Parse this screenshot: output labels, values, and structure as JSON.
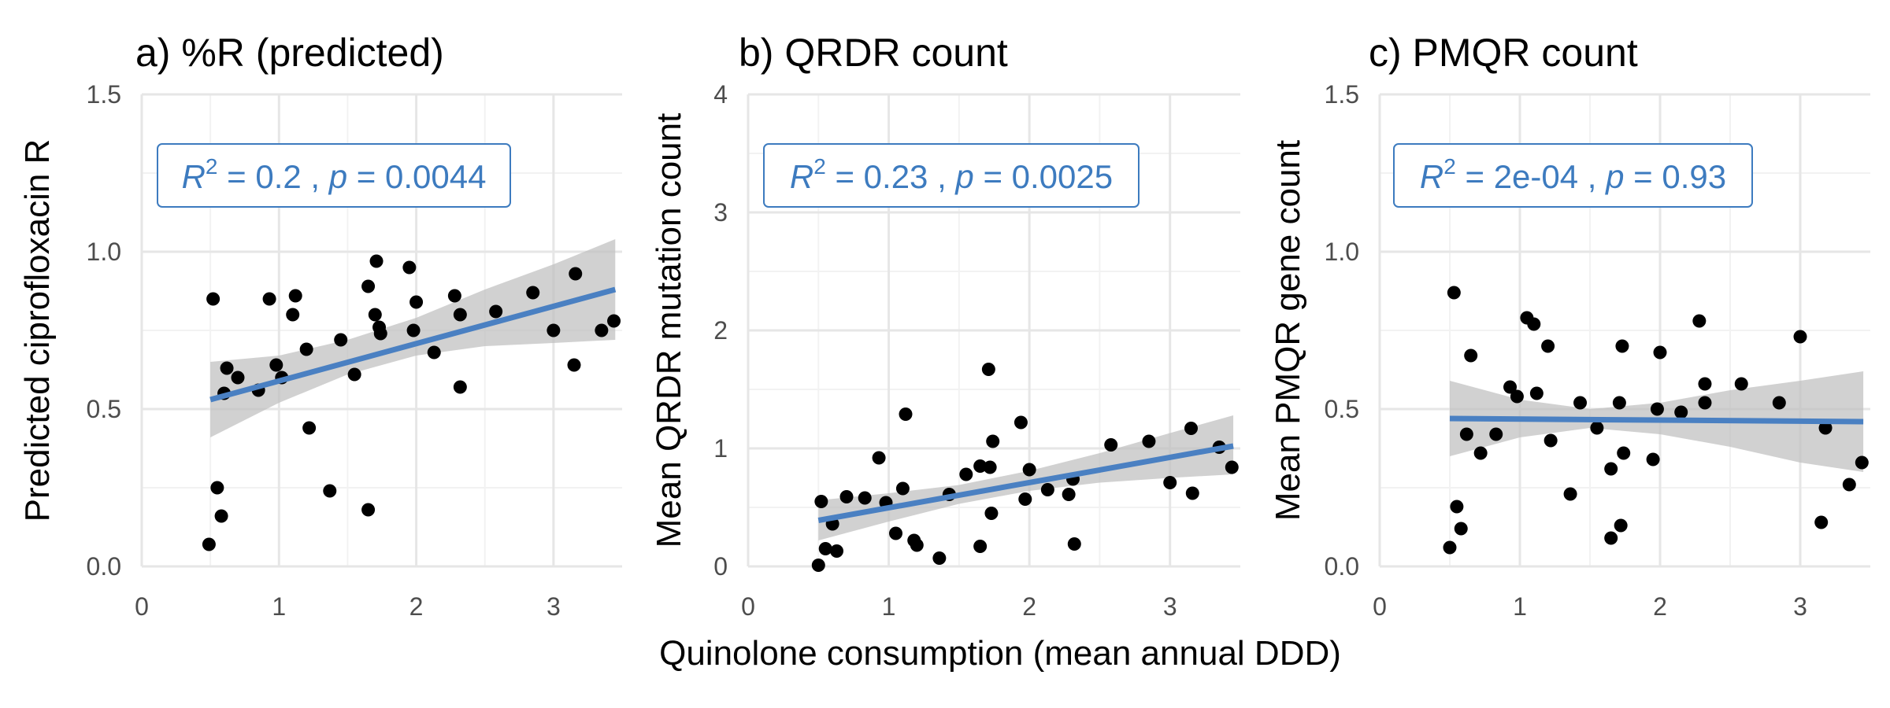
{
  "figure": {
    "shared_xlabel": "Quinolone consumption (mean annual DDD)",
    "colors": {
      "point": "#000000",
      "line": "#4a80c2",
      "band": "#bdbdbd",
      "grid_major": "#e6e6e6",
      "grid_minor": "#f2f2f2",
      "stat_text": "#3d7bbf"
    }
  },
  "chart_data": [
    {
      "type": "scatter",
      "title": "a) %R (predicted)",
      "xlabel": "",
      "ylabel": "Predicted ciprofloxacin R",
      "xlim": [
        0,
        3.5
      ],
      "ylim": [
        0,
        1.5
      ],
      "xticks": [
        "0",
        "1",
        "2",
        "3"
      ],
      "yticks": [
        "0.0",
        "0.5",
        "1.0",
        "1.5"
      ],
      "stat_label": {
        "r2": "0.2",
        "p": "0.0044"
      },
      "points": [
        [
          0.49,
          0.07
        ],
        [
          0.52,
          0.85
        ],
        [
          0.55,
          0.25
        ],
        [
          0.58,
          0.16
        ],
        [
          0.6,
          0.55
        ],
        [
          0.62,
          0.63
        ],
        [
          0.7,
          0.6
        ],
        [
          0.85,
          0.56
        ],
        [
          0.93,
          0.85
        ],
        [
          0.98,
          0.64
        ],
        [
          1.02,
          0.6
        ],
        [
          1.1,
          0.8
        ],
        [
          1.12,
          0.86
        ],
        [
          1.2,
          0.69
        ],
        [
          1.22,
          0.44
        ],
        [
          1.37,
          0.24
        ],
        [
          1.45,
          0.72
        ],
        [
          1.55,
          0.61
        ],
        [
          1.65,
          0.18
        ],
        [
          1.65,
          0.89
        ],
        [
          1.7,
          0.8
        ],
        [
          1.71,
          0.97
        ],
        [
          1.73,
          0.76
        ],
        [
          1.74,
          0.74
        ],
        [
          1.95,
          0.95
        ],
        [
          1.98,
          0.75
        ],
        [
          2.0,
          0.84
        ],
        [
          2.13,
          0.68
        ],
        [
          2.28,
          0.86
        ],
        [
          2.32,
          0.8
        ],
        [
          2.32,
          0.57
        ],
        [
          2.58,
          0.81
        ],
        [
          2.85,
          0.87
        ],
        [
          3.0,
          0.75
        ],
        [
          3.15,
          0.64
        ],
        [
          3.16,
          0.93
        ],
        [
          3.35,
          0.75
        ],
        [
          3.44,
          0.78
        ]
      ],
      "fit": {
        "x": [
          0.5,
          3.45
        ],
        "y": [
          0.53,
          0.88
        ]
      },
      "band": {
        "x": [
          0.5,
          1.0,
          1.5,
          2.0,
          2.5,
          3.0,
          3.45
        ],
        "lower": [
          0.41,
          0.52,
          0.61,
          0.67,
          0.7,
          0.71,
          0.72
        ],
        "upper": [
          0.65,
          0.67,
          0.72,
          0.79,
          0.88,
          0.96,
          1.04
        ]
      }
    },
    {
      "type": "scatter",
      "title": "b) QRDR count",
      "xlabel": "",
      "ylabel": "Mean QRDR mutation count",
      "xlim": [
        0,
        3.5
      ],
      "ylim": [
        0,
        4
      ],
      "xticks": [
        "0",
        "1",
        "2",
        "3"
      ],
      "yticks": [
        "0",
        "1",
        "2",
        "3",
        "4"
      ],
      "stat_label": {
        "r2": "0.23",
        "p": "0.0025"
      },
      "points": [
        [
          0.5,
          0.01
        ],
        [
          0.52,
          0.55
        ],
        [
          0.55,
          0.15
        ],
        [
          0.6,
          0.36
        ],
        [
          0.63,
          0.13
        ],
        [
          0.7,
          0.59
        ],
        [
          0.83,
          0.58
        ],
        [
          0.93,
          0.92
        ],
        [
          0.98,
          0.54
        ],
        [
          1.05,
          0.28
        ],
        [
          1.1,
          0.66
        ],
        [
          1.12,
          1.29
        ],
        [
          1.18,
          0.22
        ],
        [
          1.2,
          0.18
        ],
        [
          1.36,
          0.07
        ],
        [
          1.43,
          0.61
        ],
        [
          1.55,
          0.78
        ],
        [
          1.65,
          0.85
        ],
        [
          1.65,
          0.17
        ],
        [
          1.71,
          1.67
        ],
        [
          1.72,
          0.84
        ],
        [
          1.73,
          0.45
        ],
        [
          1.74,
          1.06
        ],
        [
          1.94,
          1.22
        ],
        [
          1.97,
          0.57
        ],
        [
          2.0,
          0.82
        ],
        [
          2.13,
          0.65
        ],
        [
          2.28,
          0.61
        ],
        [
          2.31,
          0.74
        ],
        [
          2.32,
          0.19
        ],
        [
          2.58,
          1.03
        ],
        [
          2.85,
          1.06
        ],
        [
          3.0,
          0.71
        ],
        [
          3.15,
          1.17
        ],
        [
          3.16,
          0.62
        ],
        [
          3.35,
          1.01
        ],
        [
          3.44,
          0.84
        ]
      ],
      "fit": {
        "x": [
          0.5,
          3.45
        ],
        "y": [
          0.39,
          1.02
        ]
      },
      "band": {
        "x": [
          0.5,
          1.0,
          1.5,
          2.0,
          2.5,
          3.0,
          3.45
        ],
        "lower": [
          0.22,
          0.38,
          0.53,
          0.64,
          0.71,
          0.75,
          0.78
        ],
        "upper": [
          0.56,
          0.62,
          0.69,
          0.81,
          0.96,
          1.13,
          1.28
        ]
      }
    },
    {
      "type": "scatter",
      "title": "c) PMQR count",
      "xlabel": "",
      "ylabel": "Mean PMQR gene count",
      "xlim": [
        0,
        3.5
      ],
      "ylim": [
        0,
        1.5
      ],
      "xticks": [
        "0",
        "1",
        "2",
        "3"
      ],
      "yticks": [
        "0.0",
        "0.5",
        "1.0",
        "1.5"
      ],
      "stat_label": {
        "r2": "2e-04",
        "p": "0.93"
      },
      "points": [
        [
          0.5,
          0.06
        ],
        [
          0.53,
          0.87
        ],
        [
          0.55,
          0.19
        ],
        [
          0.58,
          0.12
        ],
        [
          0.62,
          0.42
        ],
        [
          0.65,
          0.67
        ],
        [
          0.72,
          0.36
        ],
        [
          0.83,
          0.42
        ],
        [
          0.93,
          0.57
        ],
        [
          0.98,
          0.54
        ],
        [
          1.05,
          0.79
        ],
        [
          1.1,
          0.77
        ],
        [
          1.12,
          0.55
        ],
        [
          1.2,
          0.7
        ],
        [
          1.22,
          0.4
        ],
        [
          1.36,
          0.23
        ],
        [
          1.43,
          0.52
        ],
        [
          1.55,
          0.44
        ],
        [
          1.65,
          0.31
        ],
        [
          1.65,
          0.09
        ],
        [
          1.71,
          0.52
        ],
        [
          1.72,
          0.13
        ],
        [
          1.73,
          0.7
        ],
        [
          1.74,
          0.36
        ],
        [
          1.95,
          0.34
        ],
        [
          1.98,
          0.5
        ],
        [
          2.0,
          0.68
        ],
        [
          2.15,
          0.49
        ],
        [
          2.28,
          0.78
        ],
        [
          2.32,
          0.58
        ],
        [
          2.32,
          0.52
        ],
        [
          2.58,
          0.58
        ],
        [
          2.85,
          0.52
        ],
        [
          3.0,
          0.73
        ],
        [
          3.15,
          0.14
        ],
        [
          3.18,
          0.44
        ],
        [
          3.35,
          0.26
        ],
        [
          3.44,
          0.33
        ]
      ],
      "fit": {
        "x": [
          0.5,
          3.45
        ],
        "y": [
          0.47,
          0.46
        ]
      },
      "band": {
        "x": [
          0.5,
          1.0,
          1.5,
          2.0,
          2.5,
          3.0,
          3.45
        ],
        "lower": [
          0.35,
          0.41,
          0.44,
          0.42,
          0.38,
          0.33,
          0.3
        ],
        "upper": [
          0.59,
          0.53,
          0.5,
          0.52,
          0.56,
          0.59,
          0.62
        ]
      }
    }
  ]
}
